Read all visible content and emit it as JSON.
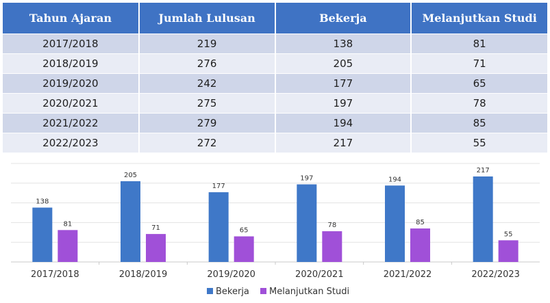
{
  "table": {
    "headers": [
      "Tahun Ajaran",
      "Jumlah Lulusan",
      "Bekerja",
      "Melanjutkan Studi"
    ],
    "rows": [
      [
        "2017/2018",
        "219",
        "138",
        "81"
      ],
      [
        "2018/2019",
        "276",
        "205",
        "71"
      ],
      [
        "2019/2020",
        "242",
        "177",
        "65"
      ],
      [
        "2020/2021",
        "275",
        "197",
        "78"
      ],
      [
        "2021/2022",
        "279",
        "194",
        "85"
      ],
      [
        "2022/2023",
        "272",
        "217",
        "55"
      ]
    ]
  },
  "colors": {
    "header_bg": "#3f73c4",
    "row_odd": "#cfd6e9",
    "row_even": "#e9ecf5",
    "bekerja": "#3f78c8",
    "melanjutkan": "#a050d8"
  },
  "chart_data": {
    "type": "bar",
    "categories": [
      "2017/2018",
      "2018/2019",
      "2019/2020",
      "2020/2021",
      "2021/2022",
      "2022/2023"
    ],
    "series": [
      {
        "name": "Bekerja",
        "values": [
          138,
          205,
          177,
          197,
          194,
          217
        ],
        "color": "#3f78c8"
      },
      {
        "name": "Melanjutkan Studi",
        "values": [
          81,
          71,
          65,
          78,
          85,
          55
        ],
        "color": "#a050d8"
      }
    ],
    "ylim": [
      0,
      250
    ],
    "grid": true,
    "data_labels": true,
    "legend_position": "bottom-center"
  }
}
